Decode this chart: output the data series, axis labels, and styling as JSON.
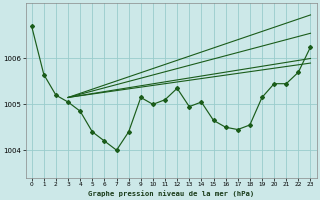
{
  "title": "Graphe pression niveau de la mer (hPa)",
  "bg_color": "#cce8e8",
  "grid_color": "#99cccc",
  "line_color": "#1a5c1a",
  "xlim": [
    -0.5,
    23.5
  ],
  "ylim": [
    1003.4,
    1007.2
  ],
  "yticks": [
    1004,
    1005,
    1006
  ],
  "xticks": [
    0,
    1,
    2,
    3,
    4,
    5,
    6,
    7,
    8,
    9,
    10,
    11,
    12,
    13,
    14,
    15,
    16,
    17,
    18,
    19,
    20,
    21,
    22,
    23
  ],
  "series_measured": [
    1006.7,
    1005.65,
    1005.2,
    1005.05,
    1004.85,
    1004.4,
    1004.2,
    1004.0,
    1004.4,
    1005.15,
    1005.0,
    1005.1,
    1005.35,
    1004.95,
    1005.05,
    1004.65,
    1004.5,
    1004.45,
    1004.55,
    1005.15,
    1005.45,
    1005.45,
    1005.7,
    1006.25
  ],
  "fan_lines": [
    {
      "x0": 3,
      "y0": 1005.15,
      "x1": 23,
      "y1": 1005.9
    },
    {
      "x0": 3,
      "y0": 1005.15,
      "x1": 23,
      "y1": 1006.0
    },
    {
      "x0": 3,
      "y0": 1005.15,
      "x1": 23,
      "y1": 1006.55
    },
    {
      "x0": 3,
      "y0": 1005.15,
      "x1": 23,
      "y1": 1006.95
    }
  ]
}
